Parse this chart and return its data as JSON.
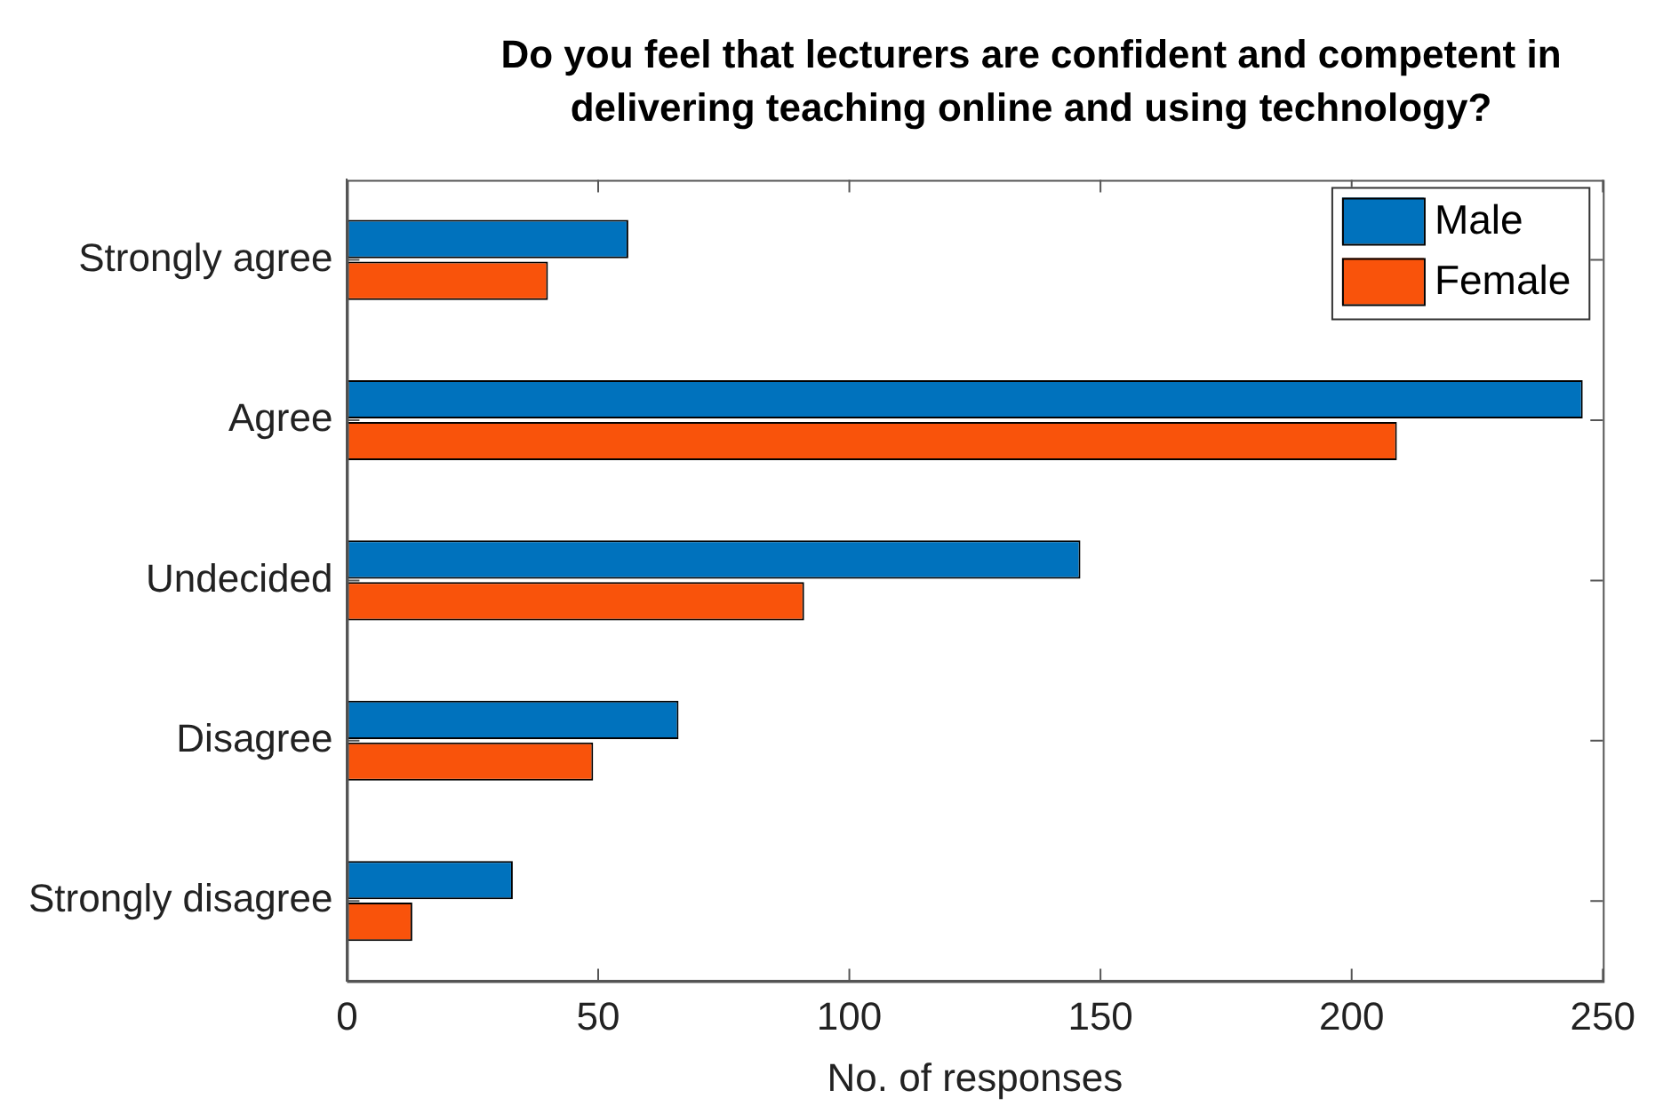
{
  "chart_data": {
    "type": "bar",
    "orientation": "horizontal",
    "title": "Do you feel that lecturers are confident and competent in delivering teaching online and using technology?",
    "xlabel": "No. of responses",
    "categories": [
      "Strongly agree",
      "Agree",
      "Undecided",
      "Disagree",
      "Strongly disagree"
    ],
    "series": [
      {
        "name": "Male",
        "color": "#0072bd",
        "values": [
          56,
          246,
          146,
          66,
          33
        ]
      },
      {
        "name": "Female",
        "color": "#f9530b",
        "values": [
          40,
          209,
          91,
          49,
          13
        ]
      }
    ],
    "xlim": [
      0,
      250
    ],
    "xticks": [
      0,
      50,
      100,
      150,
      200,
      250
    ],
    "grid": false,
    "legend": "top right"
  }
}
